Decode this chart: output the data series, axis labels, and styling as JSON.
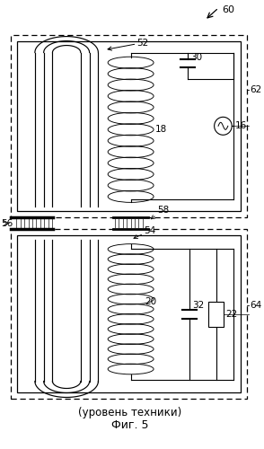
{
  "title": "Фиг. 5",
  "subtitle": "(уровень техники)",
  "label_60": "60",
  "label_52": "52",
  "label_62": "62",
  "label_18": "18",
  "label_30": "30",
  "label_16": "16",
  "label_58": "58",
  "label_56": "56",
  "label_54": "54",
  "label_64": "64",
  "label_20": "20",
  "label_32": "32",
  "label_22": "22",
  "bg_color": "#ffffff",
  "line_color": "#000000",
  "fig_width": 2.94,
  "fig_height": 5.0
}
